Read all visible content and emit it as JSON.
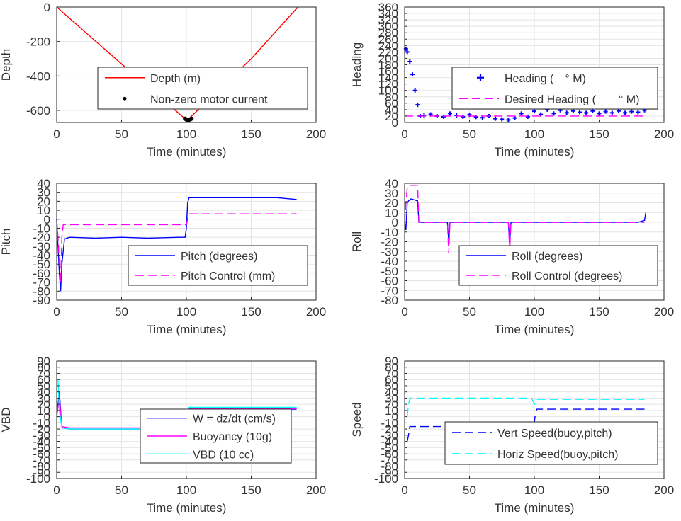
{
  "chart_data": [
    {
      "type": "line",
      "ylabel": "Depth",
      "xlabel": "Time (minutes)",
      "xlim": [
        0,
        200
      ],
      "ylim": [
        -670,
        0
      ],
      "xticks": [
        0,
        50,
        100,
        150,
        200
      ],
      "yticks": [
        0,
        -200,
        -400,
        -600
      ],
      "grid": true,
      "legend": {
        "placement": "middle",
        "entries": [
          "Depth (m)",
          "Non-zero motor current"
        ]
      },
      "series": [
        {
          "name": "Depth (m)",
          "color": "#ff0000",
          "style": "solid",
          "x": [
            0,
            50,
            100,
            101,
            150,
            186
          ],
          "y": [
            0,
            -330,
            -655,
            -655,
            -300,
            0
          ]
        },
        {
          "name": "Non-zero motor current",
          "color": "#000000",
          "style": "dots",
          "x": [
            99,
            100,
            101,
            102,
            103,
            104
          ],
          "y": [
            -648,
            -653,
            -656,
            -655,
            -652,
            -648
          ]
        }
      ]
    },
    {
      "type": "scatter",
      "ylabel": "Heading",
      "xlabel": "Time (minutes)",
      "xlim": [
        0,
        200
      ],
      "ylim": [
        0,
        360
      ],
      "xticks": [
        0,
        50,
        100,
        150,
        200
      ],
      "yticks": [
        0,
        20,
        40,
        60,
        80,
        100,
        120,
        140,
        160,
        180,
        200,
        220,
        240,
        260,
        280,
        300,
        320,
        340,
        360
      ],
      "grid": true,
      "legend": {
        "placement": "middle-right",
        "entries": [
          "Heading ( ° M)",
          "Desired Heading (  ° M)"
        ]
      },
      "series": [
        {
          "name": "Heading ( ° M)",
          "color": "#0000ff",
          "style": "plus",
          "x": [
            1,
            2,
            4,
            6,
            8,
            10,
            12,
            15,
            20,
            25,
            30,
            35,
            40,
            45,
            50,
            55,
            60,
            65,
            70,
            75,
            80,
            85,
            90,
            95,
            100,
            105,
            110,
            115,
            120,
            125,
            130,
            135,
            140,
            145,
            150,
            155,
            160,
            165,
            170,
            175,
            180,
            185
          ],
          "y": [
            230,
            220,
            190,
            150,
            100,
            55,
            20,
            22,
            25,
            20,
            18,
            28,
            22,
            18,
            24,
            17,
            15,
            20,
            12,
            10,
            8,
            14,
            28,
            18,
            35,
            25,
            40,
            28,
            38,
            30,
            36,
            32,
            30,
            36,
            28,
            34,
            30,
            36,
            30,
            34,
            32,
            38
          ]
        },
        {
          "name": "Desired Heading (  ° M)",
          "color": "#ff00ff",
          "style": "dashed",
          "x": [
            0,
            185
          ],
          "y": [
            20,
            20
          ]
        }
      ]
    },
    {
      "type": "line",
      "ylabel": "Pitch",
      "xlabel": "Time (minutes)",
      "xlim": [
        0,
        200
      ],
      "ylim": [
        -90,
        40
      ],
      "xticks": [
        0,
        50,
        100,
        150,
        200
      ],
      "yticks": [
        40,
        30,
        20,
        10,
        0,
        -10,
        -20,
        -30,
        -40,
        -50,
        -60,
        -70,
        -80,
        -90
      ],
      "grid": true,
      "legend": {
        "placement": "bottom-right",
        "entries": [
          "Pitch (degrees)",
          "Pitch Control (mm)"
        ]
      },
      "series": [
        {
          "name": "Pitch (degrees)",
          "color": "#0000ff",
          "style": "solid",
          "x": [
            0,
            1,
            2,
            3,
            4,
            6,
            10,
            30,
            50,
            70,
            95,
            99,
            100,
            101,
            102,
            110,
            130,
            150,
            170,
            185
          ],
          "y": [
            0,
            -30,
            -60,
            -80,
            -50,
            -22,
            -20,
            -21,
            -20,
            -21,
            -20,
            -20,
            -10,
            18,
            24,
            24,
            24,
            24,
            24,
            22
          ]
        },
        {
          "name": "Pitch Control (mm)",
          "color": "#ff00ff",
          "style": "dashed",
          "x": [
            0,
            1,
            2,
            3,
            4,
            5,
            100,
            101,
            102,
            185
          ],
          "y": [
            0,
            -20,
            -50,
            -70,
            -20,
            -6,
            -6,
            0,
            6,
            6
          ]
        }
      ]
    },
    {
      "type": "line",
      "ylabel": "Roll",
      "xlabel": "Time (minutes)",
      "xlim": [
        0,
        200
      ],
      "ylim": [
        -80,
        40
      ],
      "xticks": [
        0,
        50,
        100,
        150,
        200
      ],
      "yticks": [
        40,
        30,
        20,
        10,
        0,
        -10,
        -20,
        -30,
        -40,
        -50,
        -60,
        -70,
        -80
      ],
      "grid": true,
      "legend": {
        "placement": "middle-right",
        "entries": [
          "Roll (degrees)",
          "Roll Control (degrees)"
        ]
      },
      "series": [
        {
          "name": "Roll (degrees)",
          "color": "#0000ff",
          "style": "solid",
          "x": [
            0,
            1,
            2,
            3,
            5,
            10,
            11,
            33,
            34,
            35,
            80,
            81,
            82,
            100,
            120,
            140,
            160,
            180,
            185,
            186
          ],
          "y": [
            0,
            -8,
            20,
            22,
            24,
            22,
            0,
            0,
            -20,
            0,
            0,
            -22,
            0,
            0,
            0,
            0,
            0,
            0,
            2,
            10
          ]
        },
        {
          "name": "Roll Control (degrees)",
          "color": "#ff00ff",
          "style": "dashed",
          "x": [
            0,
            1,
            2,
            3,
            5,
            10,
            11,
            33,
            34,
            35,
            80,
            81,
            82,
            100,
            185
          ],
          "y": [
            0,
            20,
            35,
            38,
            38,
            38,
            0,
            0,
            -32,
            0,
            0,
            -30,
            0,
            0,
            0
          ]
        }
      ]
    },
    {
      "type": "line",
      "ylabel": "VBD",
      "xlabel": "Time (minutes)",
      "xlim": [
        0,
        200
      ],
      "ylim": [
        -100,
        90
      ],
      "xticks": [
        0,
        50,
        100,
        150,
        200
      ],
      "yticks": [
        90,
        80,
        70,
        60,
        50,
        40,
        30,
        20,
        10,
        0,
        -10,
        -20,
        -30,
        -40,
        -50,
        -60,
        -70,
        -80,
        -90,
        -100
      ],
      "grid": true,
      "legend": {
        "placement": "bottom-right",
        "entries": [
          "W = dz/dt (cm/s)",
          "Buoyancy (10g)",
          "VBD (10 cc)"
        ]
      },
      "series": [
        {
          "name": "W = dz/dt (cm/s)",
          "color": "#0000ff",
          "style": "solid",
          "x": [
            0,
            2,
            4,
            10,
            50,
            98,
            100,
            102,
            110,
            150,
            185
          ],
          "y": [
            0,
            40,
            -18,
            -20,
            -20,
            -20,
            -10,
            12,
            12,
            12,
            12
          ]
        },
        {
          "name": "Buoyancy (10g)",
          "color": "#ff00ff",
          "style": "solid",
          "x": [
            0,
            2,
            4,
            10,
            50,
            98,
            100,
            102,
            110,
            150,
            185
          ],
          "y": [
            0,
            30,
            -16,
            -18,
            -18,
            -18,
            -8,
            13,
            13,
            13,
            13
          ]
        },
        {
          "name": "VBD (10 cc)",
          "color": "#00ffff",
          "style": "solid",
          "x": [
            0,
            1,
            2,
            4,
            10,
            50,
            98,
            100,
            102,
            110,
            150,
            185
          ],
          "y": [
            60,
            60,
            10,
            -18,
            -20,
            -20,
            -20,
            -8,
            15,
            15,
            15,
            15
          ]
        }
      ]
    },
    {
      "type": "line",
      "ylabel": "Speed",
      "xlabel": "Time (minutes)",
      "xlim": [
        0,
        200
      ],
      "ylim": [
        -100,
        90
      ],
      "xticks": [
        0,
        50,
        100,
        150,
        200
      ],
      "yticks": [
        90,
        80,
        70,
        60,
        50,
        40,
        30,
        20,
        10,
        0,
        -10,
        -20,
        -30,
        -40,
        -50,
        -60,
        -70,
        -80,
        -90,
        -100
      ],
      "grid": true,
      "legend": {
        "placement": "bottom-right",
        "entries": [
          "Vert Speed(buoy,pitch)",
          "Horiz Speed(buoy,pitch)"
        ]
      },
      "series": [
        {
          "name": "Vert Speed(buoy,pitch)",
          "color": "#0000ff",
          "style": "dashed",
          "x": [
            2,
            3,
            4,
            5,
            50,
            98,
            100,
            101,
            102,
            110,
            150,
            185
          ],
          "y": [
            -40,
            -30,
            -16,
            -16,
            -16,
            -16,
            -10,
            8,
            12,
            12,
            12,
            12
          ]
        },
        {
          "name": "Horiz Speed(buoy,pitch)",
          "color": "#00ffff",
          "style": "dashed",
          "x": [
            2,
            3,
            4,
            5,
            50,
            98,
            100,
            101,
            102,
            110,
            150,
            185
          ],
          "y": [
            0,
            20,
            30,
            30,
            30,
            30,
            20,
            22,
            28,
            28,
            28,
            28
          ]
        }
      ]
    }
  ]
}
